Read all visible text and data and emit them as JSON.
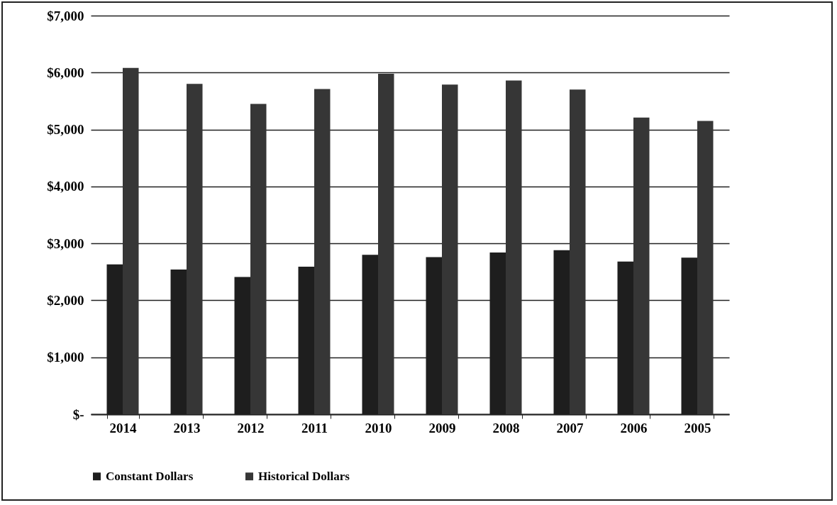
{
  "chart_data": {
    "type": "bar",
    "categories": [
      "2014",
      "2013",
      "2012",
      "2011",
      "2010",
      "2009",
      "2008",
      "2007",
      "2006",
      "2005"
    ],
    "series": [
      {
        "name": "Constant Dollars",
        "color": "#1e1e1e",
        "values": [
          2630,
          2540,
          2410,
          2590,
          2800,
          2760,
          2840,
          2880,
          2680,
          2750
        ]
      },
      {
        "name": "Historical Dollars",
        "color": "#363636",
        "values": [
          6080,
          5800,
          5450,
          5710,
          5980,
          5790,
          5860,
          5700,
          5210,
          5150
        ]
      }
    ],
    "ylim": [
      0,
      7000
    ],
    "yticks": [
      {
        "value": 0,
        "label": "$-"
      },
      {
        "value": 1000,
        "label": "$1,000"
      },
      {
        "value": 2000,
        "label": "$2,000"
      },
      {
        "value": 3000,
        "label": "$3,000"
      },
      {
        "value": 4000,
        "label": "$4,000"
      },
      {
        "value": 5000,
        "label": "$5,000"
      },
      {
        "value": 6000,
        "label": "$6,000"
      },
      {
        "value": 7000,
        "label": "$7,000"
      }
    ],
    "grid": "y",
    "legend": "bottom"
  }
}
